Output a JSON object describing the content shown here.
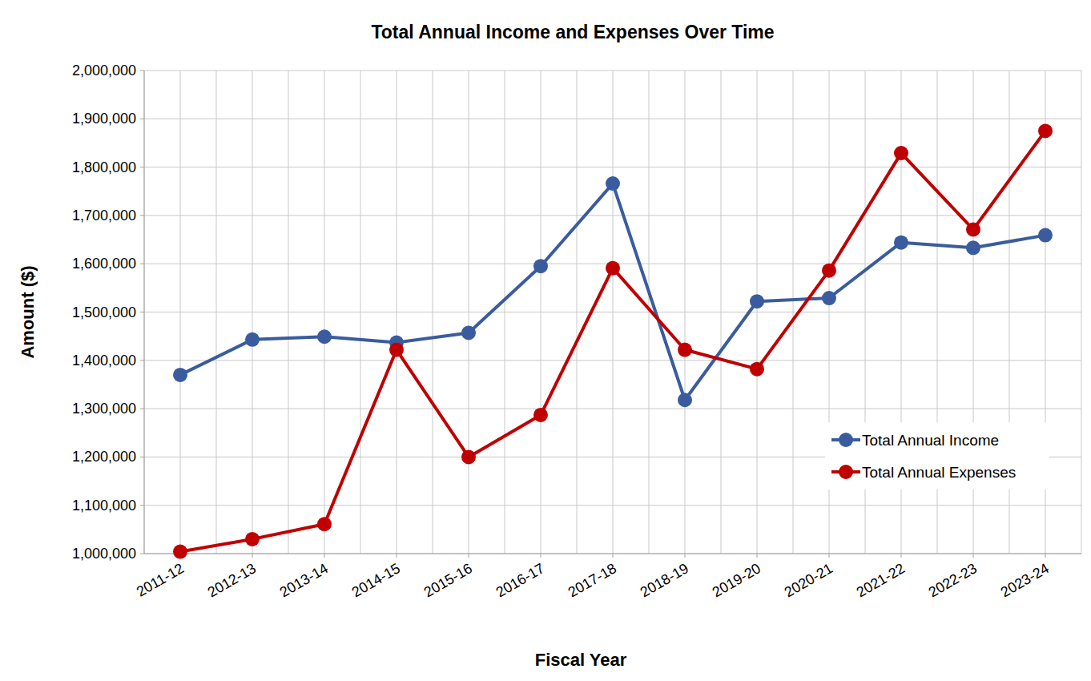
{
  "chart_data": {
    "type": "line",
    "title": "Total Annual Income and Expenses Over Time",
    "x_label": "Fiscal Year",
    "y_label": "Amount ($)",
    "categories": [
      "2011-12",
      "2012-13",
      "2013-14",
      "2014-15",
      "2015-16",
      "2016-17",
      "2017-18",
      "2018-19",
      "2019-20",
      "2020-21",
      "2021-22",
      "2022-23",
      "2023-24"
    ],
    "series": [
      {
        "name": "Total Annual Income",
        "color": "#3a5c9f",
        "marker": "circle",
        "line_style": "solid",
        "values": [
          1370000,
          1443000,
          1449000,
          1437000,
          1457000,
          1595000,
          1766000,
          1318000,
          1522000,
          1529000,
          1644000,
          1633000,
          1659000
        ]
      },
      {
        "name": "Total Annual Expenses",
        "color": "#c00000",
        "marker": "circle",
        "line_style": "solid",
        "values": [
          1004000,
          1030000,
          1061000,
          1422000,
          1200000,
          1287000,
          1591000,
          1422000,
          1382000,
          1586000,
          1829000,
          1671000,
          1875000
        ]
      }
    ],
    "ylim": [
      1000000,
      2000000
    ],
    "yticks": [
      {
        "value": 1000000,
        "label": "1,000,000"
      },
      {
        "value": 1100000,
        "label": "1,100,000"
      },
      {
        "value": 1200000,
        "label": "1,200,000"
      },
      {
        "value": 1300000,
        "label": "1,300,000"
      },
      {
        "value": 1400000,
        "label": "1,400,000"
      },
      {
        "value": 1500000,
        "label": "1,500,000"
      },
      {
        "value": 1600000,
        "label": "1,600,000"
      },
      {
        "value": 1700000,
        "label": "1,700,000"
      },
      {
        "value": 1800000,
        "label": "1,800,000"
      },
      {
        "value": 1900000,
        "label": "1,900,000"
      },
      {
        "value": 2000000,
        "label": "2,000,000"
      }
    ],
    "grid": true,
    "legend": "bottom-right"
  }
}
